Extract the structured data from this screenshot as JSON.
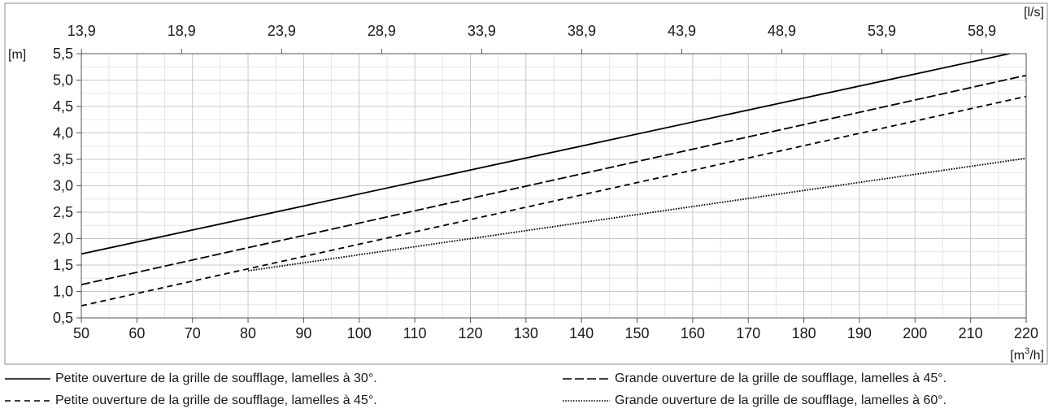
{
  "chart_data": {
    "type": "line",
    "x_axis_bottom": {
      "unit_label": "[m3/h]",
      "unit_base": "[m",
      "unit_sup": "3",
      "unit_rest": "/h]",
      "range": [
        50,
        220
      ],
      "ticks": [
        "50",
        "60",
        "70",
        "80",
        "90",
        "100",
        "110",
        "120",
        "130",
        "140",
        "150",
        "160",
        "170",
        "180",
        "190",
        "200",
        "210",
        "220"
      ]
    },
    "x_axis_top": {
      "unit_label": "[l/s]",
      "ticks": [
        "13,9",
        "18,9",
        "23,9",
        "28,9",
        "33,9",
        "38,9",
        "43,9",
        "48,9",
        "53,9",
        "58,9"
      ]
    },
    "y_axis": {
      "unit_label": "[m]",
      "range": [
        0.5,
        5.5
      ],
      "ticks": [
        "0,5",
        "1,0",
        "1,5",
        "2,0",
        "2,5",
        "3,0",
        "3,5",
        "4,0",
        "4,5",
        "5,0",
        "5,5"
      ]
    },
    "grid": true,
    "legend_position": "bottom",
    "series": [
      {
        "name": "Petite ouverture de la grille de soufflage, lamelles à 30°.",
        "style": "solid",
        "x": [
          50,
          217
        ],
        "y": [
          1.71,
          5.5
        ]
      },
      {
        "name": "Grande ouverture de la grille de soufflage, lamelles à 45°.",
        "style": "long-dash",
        "x": [
          50,
          220
        ],
        "y": [
          1.13,
          5.09
        ]
      },
      {
        "name": "Petite ouverture de la grille de soufflage, lamelles à 45°.",
        "style": "short-dash",
        "x": [
          50,
          220
        ],
        "y": [
          0.73,
          4.69
        ]
      },
      {
        "name": "Grande ouverture de la grille de soufflage, lamelles à 60°.",
        "style": "dotted",
        "x": [
          80,
          220
        ],
        "y": [
          1.39,
          3.52
        ]
      }
    ]
  },
  "colors": {
    "line": "#000000",
    "grid": "#c8c8c8",
    "frame": "#8c8c8c"
  }
}
